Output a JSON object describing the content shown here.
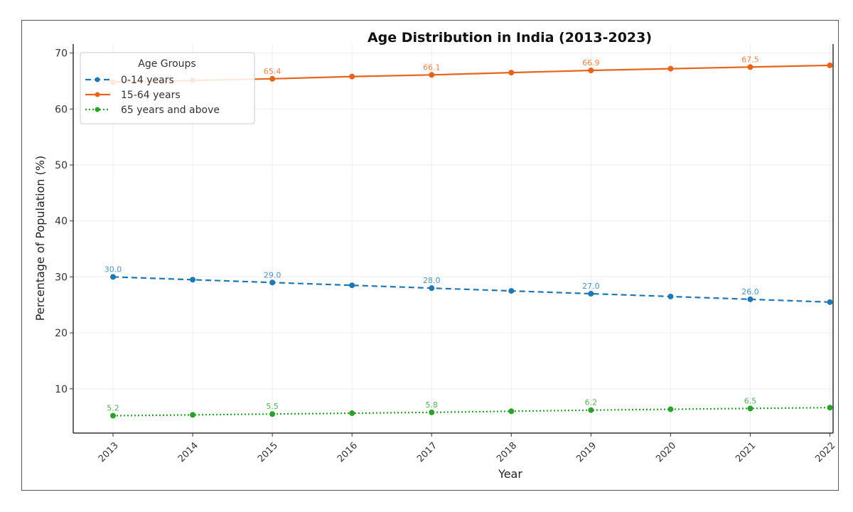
{
  "chart_data": {
    "type": "line",
    "title": "Age Distribution in India (2013-2023)",
    "xlabel": "Year",
    "ylabel": "Percentage of Population (%)",
    "x": [
      2013,
      2014,
      2015,
      2016,
      2017,
      2018,
      2019,
      2020,
      2021,
      2022
    ],
    "xtick_labels": [
      "2013",
      "2014",
      "2015",
      "2016",
      "2017",
      "2018",
      "2019",
      "2020",
      "2021",
      "2022"
    ],
    "yticks": [
      10,
      20,
      30,
      40,
      50,
      60,
      70
    ],
    "ylim": [
      2.1,
      71.6
    ],
    "xlim": [
      2012.5,
      2022.04
    ],
    "grid": true,
    "legend": {
      "title": "Age Groups",
      "placement": "top-left"
    },
    "series": [
      {
        "name": "0-14 years",
        "color": "#1f77b4",
        "style": "dashed",
        "values": [
          30.0,
          29.5,
          29.0,
          28.5,
          28.0,
          27.5,
          27.0,
          26.5,
          26.0,
          25.5
        ],
        "labels": {
          "2013": "30.0",
          "2015": "29.0",
          "2017": "28.0",
          "2019": "27.0",
          "2021": "26.0"
        }
      },
      {
        "name": "15-64 years",
        "color": "#e8641b",
        "style": "solid",
        "values": [
          64.8,
          65.1,
          65.4,
          65.8,
          66.1,
          66.5,
          66.9,
          67.2,
          67.5,
          67.8
        ],
        "labels": {
          "2015": "65.4",
          "2017": "66.1",
          "2019": "66.9",
          "2021": "67.5"
        }
      },
      {
        "name": "65 years and above",
        "color": "#2ca02c",
        "style": "dotted",
        "values": [
          5.2,
          5.35,
          5.5,
          5.65,
          5.8,
          6.0,
          6.2,
          6.35,
          6.5,
          6.65
        ],
        "labels": {
          "2013": "5.2",
          "2015": "5.5",
          "2017": "5.8",
          "2019": "6.2",
          "2021": "6.5"
        }
      }
    ]
  }
}
